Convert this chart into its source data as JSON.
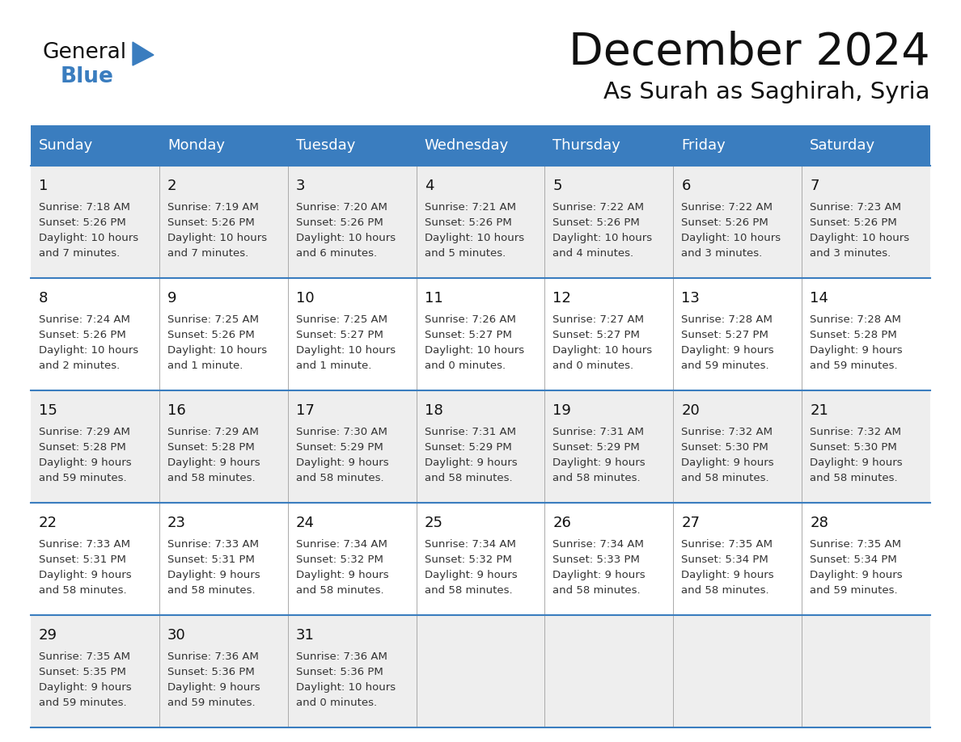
{
  "title": "December 2024",
  "subtitle": "As Surah as Saghirah, Syria",
  "header_color": "#3a7dbf",
  "header_text_color": "#FFFFFF",
  "background_color": "#FFFFFF",
  "odd_row_color": "#eeeeee",
  "even_row_color": "#FFFFFF",
  "grid_color": "#3a7dbf",
  "light_line_color": "#aaaaaa",
  "text_color": "#111111",
  "cell_text_color": "#333333",
  "logo_black": "#111111",
  "logo_blue": "#3a7dbf",
  "day_names": [
    "Sunday",
    "Monday",
    "Tuesday",
    "Wednesday",
    "Thursday",
    "Friday",
    "Saturday"
  ],
  "weeks": [
    [
      {
        "day": "1",
        "sunrise": "7:18 AM",
        "sunset": "5:26 PM",
        "dl1": "Daylight: 10 hours",
        "dl2": "and 7 minutes."
      },
      {
        "day": "2",
        "sunrise": "7:19 AM",
        "sunset": "5:26 PM",
        "dl1": "Daylight: 10 hours",
        "dl2": "and 7 minutes."
      },
      {
        "day": "3",
        "sunrise": "7:20 AM",
        "sunset": "5:26 PM",
        "dl1": "Daylight: 10 hours",
        "dl2": "and 6 minutes."
      },
      {
        "day": "4",
        "sunrise": "7:21 AM",
        "sunset": "5:26 PM",
        "dl1": "Daylight: 10 hours",
        "dl2": "and 5 minutes."
      },
      {
        "day": "5",
        "sunrise": "7:22 AM",
        "sunset": "5:26 PM",
        "dl1": "Daylight: 10 hours",
        "dl2": "and 4 minutes."
      },
      {
        "day": "6",
        "sunrise": "7:22 AM",
        "sunset": "5:26 PM",
        "dl1": "Daylight: 10 hours",
        "dl2": "and 3 minutes."
      },
      {
        "day": "7",
        "sunrise": "7:23 AM",
        "sunset": "5:26 PM",
        "dl1": "Daylight: 10 hours",
        "dl2": "and 3 minutes."
      }
    ],
    [
      {
        "day": "8",
        "sunrise": "7:24 AM",
        "sunset": "5:26 PM",
        "dl1": "Daylight: 10 hours",
        "dl2": "and 2 minutes."
      },
      {
        "day": "9",
        "sunrise": "7:25 AM",
        "sunset": "5:26 PM",
        "dl1": "Daylight: 10 hours",
        "dl2": "and 1 minute."
      },
      {
        "day": "10",
        "sunrise": "7:25 AM",
        "sunset": "5:27 PM",
        "dl1": "Daylight: 10 hours",
        "dl2": "and 1 minute."
      },
      {
        "day": "11",
        "sunrise": "7:26 AM",
        "sunset": "5:27 PM",
        "dl1": "Daylight: 10 hours",
        "dl2": "and 0 minutes."
      },
      {
        "day": "12",
        "sunrise": "7:27 AM",
        "sunset": "5:27 PM",
        "dl1": "Daylight: 10 hours",
        "dl2": "and 0 minutes."
      },
      {
        "day": "13",
        "sunrise": "7:28 AM",
        "sunset": "5:27 PM",
        "dl1": "Daylight: 9 hours",
        "dl2": "and 59 minutes."
      },
      {
        "day": "14",
        "sunrise": "7:28 AM",
        "sunset": "5:28 PM",
        "dl1": "Daylight: 9 hours",
        "dl2": "and 59 minutes."
      }
    ],
    [
      {
        "day": "15",
        "sunrise": "7:29 AM",
        "sunset": "5:28 PM",
        "dl1": "Daylight: 9 hours",
        "dl2": "and 59 minutes."
      },
      {
        "day": "16",
        "sunrise": "7:29 AM",
        "sunset": "5:28 PM",
        "dl1": "Daylight: 9 hours",
        "dl2": "and 58 minutes."
      },
      {
        "day": "17",
        "sunrise": "7:30 AM",
        "sunset": "5:29 PM",
        "dl1": "Daylight: 9 hours",
        "dl2": "and 58 minutes."
      },
      {
        "day": "18",
        "sunrise": "7:31 AM",
        "sunset": "5:29 PM",
        "dl1": "Daylight: 9 hours",
        "dl2": "and 58 minutes."
      },
      {
        "day": "19",
        "sunrise": "7:31 AM",
        "sunset": "5:29 PM",
        "dl1": "Daylight: 9 hours",
        "dl2": "and 58 minutes."
      },
      {
        "day": "20",
        "sunrise": "7:32 AM",
        "sunset": "5:30 PM",
        "dl1": "Daylight: 9 hours",
        "dl2": "and 58 minutes."
      },
      {
        "day": "21",
        "sunrise": "7:32 AM",
        "sunset": "5:30 PM",
        "dl1": "Daylight: 9 hours",
        "dl2": "and 58 minutes."
      }
    ],
    [
      {
        "day": "22",
        "sunrise": "7:33 AM",
        "sunset": "5:31 PM",
        "dl1": "Daylight: 9 hours",
        "dl2": "and 58 minutes."
      },
      {
        "day": "23",
        "sunrise": "7:33 AM",
        "sunset": "5:31 PM",
        "dl1": "Daylight: 9 hours",
        "dl2": "and 58 minutes."
      },
      {
        "day": "24",
        "sunrise": "7:34 AM",
        "sunset": "5:32 PM",
        "dl1": "Daylight: 9 hours",
        "dl2": "and 58 minutes."
      },
      {
        "day": "25",
        "sunrise": "7:34 AM",
        "sunset": "5:32 PM",
        "dl1": "Daylight: 9 hours",
        "dl2": "and 58 minutes."
      },
      {
        "day": "26",
        "sunrise": "7:34 AM",
        "sunset": "5:33 PM",
        "dl1": "Daylight: 9 hours",
        "dl2": "and 58 minutes."
      },
      {
        "day": "27",
        "sunrise": "7:35 AM",
        "sunset": "5:34 PM",
        "dl1": "Daylight: 9 hours",
        "dl2": "and 58 minutes."
      },
      {
        "day": "28",
        "sunrise": "7:35 AM",
        "sunset": "5:34 PM",
        "dl1": "Daylight: 9 hours",
        "dl2": "and 59 minutes."
      }
    ],
    [
      {
        "day": "29",
        "sunrise": "7:35 AM",
        "sunset": "5:35 PM",
        "dl1": "Daylight: 9 hours",
        "dl2": "and 59 minutes."
      },
      {
        "day": "30",
        "sunrise": "7:36 AM",
        "sunset": "5:36 PM",
        "dl1": "Daylight: 9 hours",
        "dl2": "and 59 minutes."
      },
      {
        "day": "31",
        "sunrise": "7:36 AM",
        "sunset": "5:36 PM",
        "dl1": "Daylight: 10 hours",
        "dl2": "and 0 minutes."
      },
      null,
      null,
      null,
      null
    ]
  ]
}
